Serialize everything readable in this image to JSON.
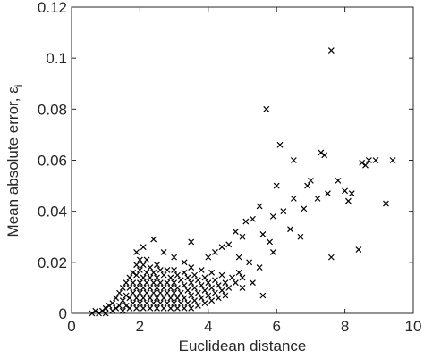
{
  "chart_data": {
    "type": "scatter",
    "x_label": "Euclidean distance",
    "y_label": "Mean absolute error, ε",
    "y_label_subscript": "i",
    "marker": "x",
    "color": "#000000",
    "box": true,
    "xlim": [
      0,
      10
    ],
    "xticks": [
      0,
      2,
      4,
      6,
      8,
      10
    ],
    "ylim": [
      0,
      0.12
    ],
    "yticks": [
      0,
      0.02,
      0.04,
      0.06,
      0.08,
      0.1,
      0.12
    ],
    "x": [
      7.6,
      5.7,
      6.1,
      7.3,
      7.4,
      8.7,
      8.9,
      8.5,
      8.6,
      6.5,
      6.0,
      7.0,
      7.8,
      6.9,
      8.0,
      7.5,
      8.2,
      8.1,
      9.2,
      7.2,
      6.5,
      7.6,
      8.4,
      5.6,
      9.4,
      6.2,
      5.5,
      6.8,
      5.9,
      5.3,
      5.1,
      6.4,
      6.7,
      5.8,
      5.6,
      5.0,
      4.8,
      4.6,
      4.4,
      4.2,
      4.0,
      4.9,
      5.2,
      5.5,
      5.9,
      5.3,
      5.0,
      3.5,
      2.4,
      2.1,
      1.9,
      2.7,
      3.0,
      3.3,
      0.6,
      0.7,
      0.8,
      0.9,
      1.0,
      1.0,
      1.1,
      1.2,
      1.2,
      1.3,
      1.3,
      1.4,
      1.4,
      1.5,
      1.5,
      1.5,
      1.6,
      1.6,
      1.6,
      1.7,
      1.7,
      1.7,
      1.7,
      1.8,
      1.8,
      1.8,
      1.8,
      1.9,
      1.9,
      1.9,
      1.9,
      1.9,
      2.0,
      2.0,
      2.0,
      2.0,
      2.0,
      2.1,
      2.1,
      2.1,
      2.1,
      2.1,
      2.2,
      2.2,
      2.2,
      2.2,
      2.2,
      2.3,
      2.3,
      2.3,
      2.3,
      2.3,
      2.4,
      2.4,
      2.4,
      2.4,
      2.5,
      2.5,
      2.5,
      2.5,
      2.5,
      2.6,
      2.6,
      2.6,
      2.6,
      2.7,
      2.7,
      2.7,
      2.7,
      2.8,
      2.8,
      2.8,
      2.8,
      2.9,
      2.9,
      2.9,
      2.9,
      3.0,
      3.0,
      3.0,
      3.0,
      3.1,
      3.1,
      3.1,
      3.1,
      3.2,
      3.2,
      3.2,
      3.3,
      3.3,
      3.3,
      3.3,
      3.4,
      3.4,
      3.4,
      3.5,
      3.5,
      3.5,
      3.5,
      3.6,
      3.6,
      3.6,
      3.7,
      3.7,
      3.7,
      3.8,
      3.8,
      3.8,
      3.9,
      3.9,
      3.9,
      4.0,
      4.0,
      4.1,
      4.1,
      4.1,
      4.2,
      4.2,
      4.3,
      4.3,
      4.4,
      4.4,
      4.5,
      4.5,
      4.6,
      4.7,
      4.8,
      4.9,
      5.0
    ],
    "values": [
      0.103,
      0.08,
      0.066,
      0.063,
      0.062,
      0.06,
      0.06,
      0.059,
      0.058,
      0.06,
      0.05,
      0.052,
      0.052,
      0.05,
      0.048,
      0.047,
      0.047,
      0.044,
      0.043,
      0.045,
      0.045,
      0.022,
      0.025,
      0.007,
      0.06,
      0.04,
      0.042,
      0.041,
      0.038,
      0.037,
      0.036,
      0.033,
      0.03,
      0.028,
      0.031,
      0.03,
      0.032,
      0.027,
      0.026,
      0.024,
      0.022,
      0.022,
      0.02,
      0.018,
      0.024,
      0.012,
      0.01,
      0.028,
      0.029,
      0.026,
      0.024,
      0.024,
      0.022,
      0.02,
      0,
      0.001,
      0,
      0.001,
      0.002,
      0,
      0.003,
      0.001,
      0.004,
      0.002,
      0.006,
      0.003,
      0.008,
      0.001,
      0.005,
      0.01,
      0.003,
      0.007,
      0.012,
      0.002,
      0.006,
      0.01,
      0.014,
      0.004,
      0.008,
      0.012,
      0.016,
      0.002,
      0.006,
      0.01,
      0.015,
      0.019,
      0.004,
      0.008,
      0.012,
      0.017,
      0.021,
      0.002,
      0.006,
      0.01,
      0.014,
      0.019,
      0.004,
      0.008,
      0.012,
      0.016,
      0.021,
      0.002,
      0.006,
      0.01,
      0.014,
      0.018,
      0.004,
      0.008,
      0.012,
      0.016,
      0.002,
      0.006,
      0.01,
      0.014,
      0.019,
      0.004,
      0.008,
      0.012,
      0.017,
      0.002,
      0.006,
      0.01,
      0.015,
      0.004,
      0.008,
      0.012,
      0.017,
      0.002,
      0.006,
      0.01,
      0.014,
      0.004,
      0.008,
      0.012,
      0.017,
      0.002,
      0.006,
      0.01,
      0.015,
      0.004,
      0.008,
      0.013,
      0.002,
      0.006,
      0.011,
      0.016,
      0.004,
      0.009,
      0.014,
      0.002,
      0.007,
      0.012,
      0.018,
      0.005,
      0.01,
      0.015,
      0.003,
      0.008,
      0.013,
      0.006,
      0.011,
      0.017,
      0.004,
      0.009,
      0.014,
      0.007,
      0.012,
      0.005,
      0.01,
      0.016,
      0.008,
      0.013,
      0.006,
      0.011,
      0.009,
      0.015,
      0.007,
      0.012,
      0.01,
      0.014,
      0.012,
      0.016,
      0.014
    ]
  }
}
